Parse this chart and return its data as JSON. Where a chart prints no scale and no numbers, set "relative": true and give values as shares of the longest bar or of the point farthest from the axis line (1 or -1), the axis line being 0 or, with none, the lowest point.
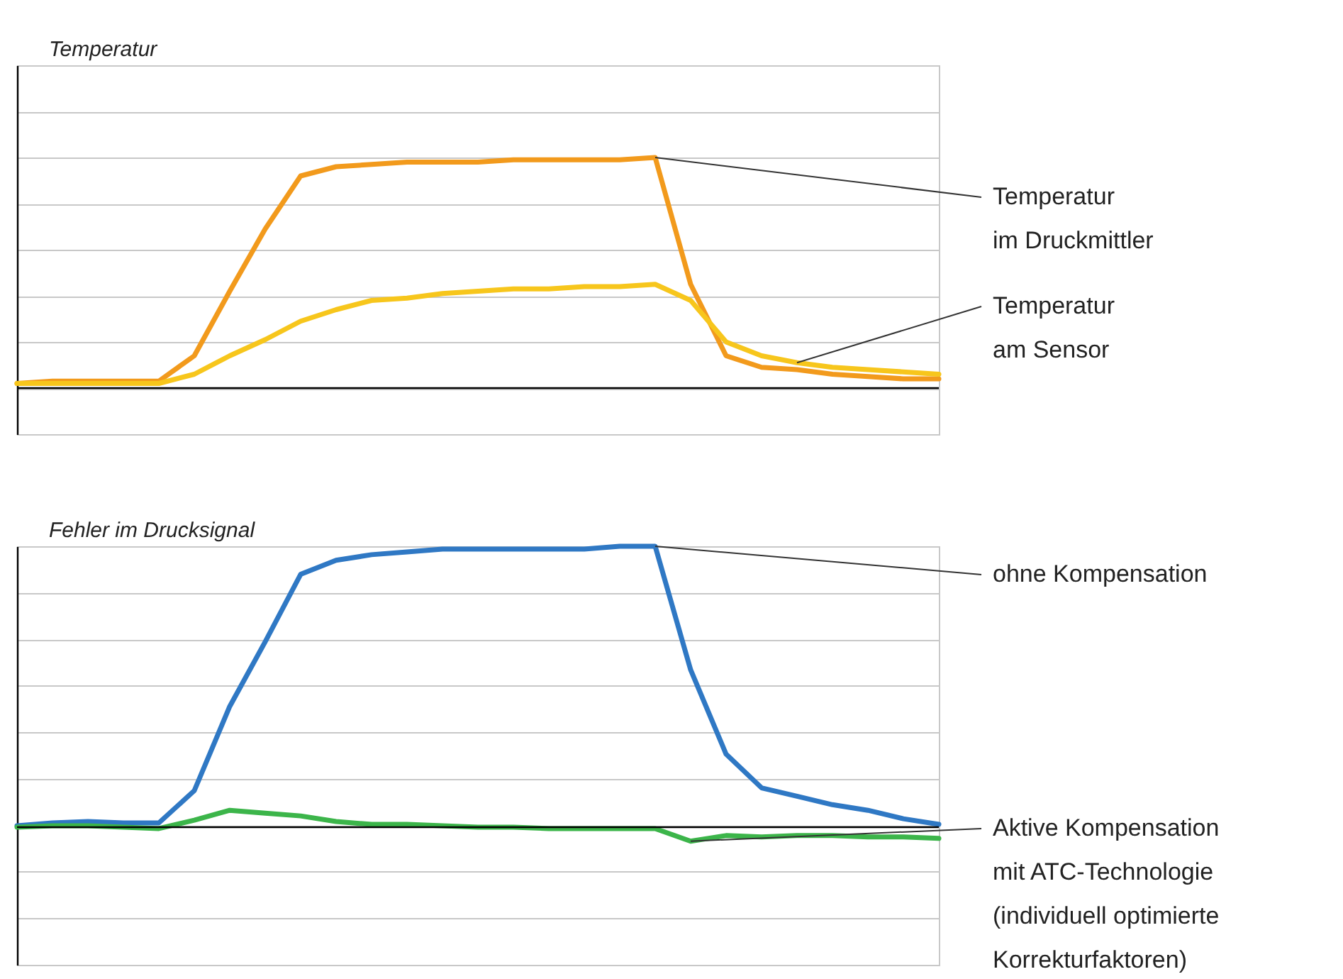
{
  "chart_data": [
    {
      "type": "line",
      "ylabel": "Temperatur",
      "relative": true,
      "grid": true,
      "categories": [
        null,
        null,
        null,
        null,
        null,
        null,
        null,
        null,
        null,
        null,
        null,
        null,
        null,
        null,
        null,
        null,
        null,
        null,
        null,
        null,
        null,
        null,
        null,
        null,
        null,
        null,
        null
      ],
      "series": [
        {
          "name": "Temperatur\nim Druckmittler",
          "color": "#f29a1c",
          "values": [
            0.02,
            0.03,
            0.03,
            0.03,
            0.03,
            0.14,
            0.42,
            0.69,
            0.92,
            0.96,
            0.97,
            0.98,
            0.98,
            0.98,
            0.99,
            0.99,
            0.99,
            0.99,
            1,
            0.45,
            0.14,
            0.09,
            0.08,
            0.06,
            0.05,
            0.04,
            0.04
          ]
        },
        {
          "name": "Temperatur\nam Sensor",
          "color": "#f7c61c",
          "values": [
            0.02,
            0.02,
            0.02,
            0.02,
            0.02,
            0.06,
            0.14,
            0.21,
            0.29,
            0.34,
            0.38,
            0.39,
            0.41,
            0.42,
            0.43,
            0.43,
            0.44,
            0.44,
            0.45,
            0.38,
            0.2,
            0.14,
            0.11,
            0.09,
            0.08,
            0.07,
            0.06
          ]
        }
      ]
    },
    {
      "type": "line",
      "ylabel": "Fehler im Drucksignal",
      "relative": true,
      "grid": true,
      "categories": [
        null,
        null,
        null,
        null,
        null,
        null,
        null,
        null,
        null,
        null,
        null,
        null,
        null,
        null,
        null,
        null,
        null,
        null,
        null,
        null,
        null,
        null,
        null,
        null,
        null,
        null,
        null
      ],
      "series": [
        {
          "name": "ohne Kompensation",
          "color": "#2f78c4",
          "values": [
            0.005,
            0.015,
            0.02,
            0.015,
            0.015,
            0.13,
            0.43,
            0.66,
            0.9,
            0.95,
            0.97,
            0.98,
            0.99,
            0.99,
            0.99,
            0.99,
            0.99,
            1,
            1,
            0.56,
            0.26,
            0.14,
            0.11,
            0.08,
            0.06,
            0.03,
            0.01
          ]
        },
        {
          "name": "Aktive Kompensation\nmit ATC-Technologie\n(individuell optimierte\nKorrekturfaktoren)",
          "color": "#3cb54a",
          "values": [
            0,
            0.005,
            0.005,
            0,
            -0.005,
            0.025,
            0.06,
            0.05,
            0.04,
            0.02,
            0.01,
            0.01,
            0.005,
            0,
            0,
            -0.005,
            -0.005,
            -0.005,
            -0.005,
            -0.05,
            -0.03,
            -0.035,
            -0.03,
            -0.03,
            -0.035,
            -0.035,
            -0.04
          ]
        }
      ]
    }
  ]
}
